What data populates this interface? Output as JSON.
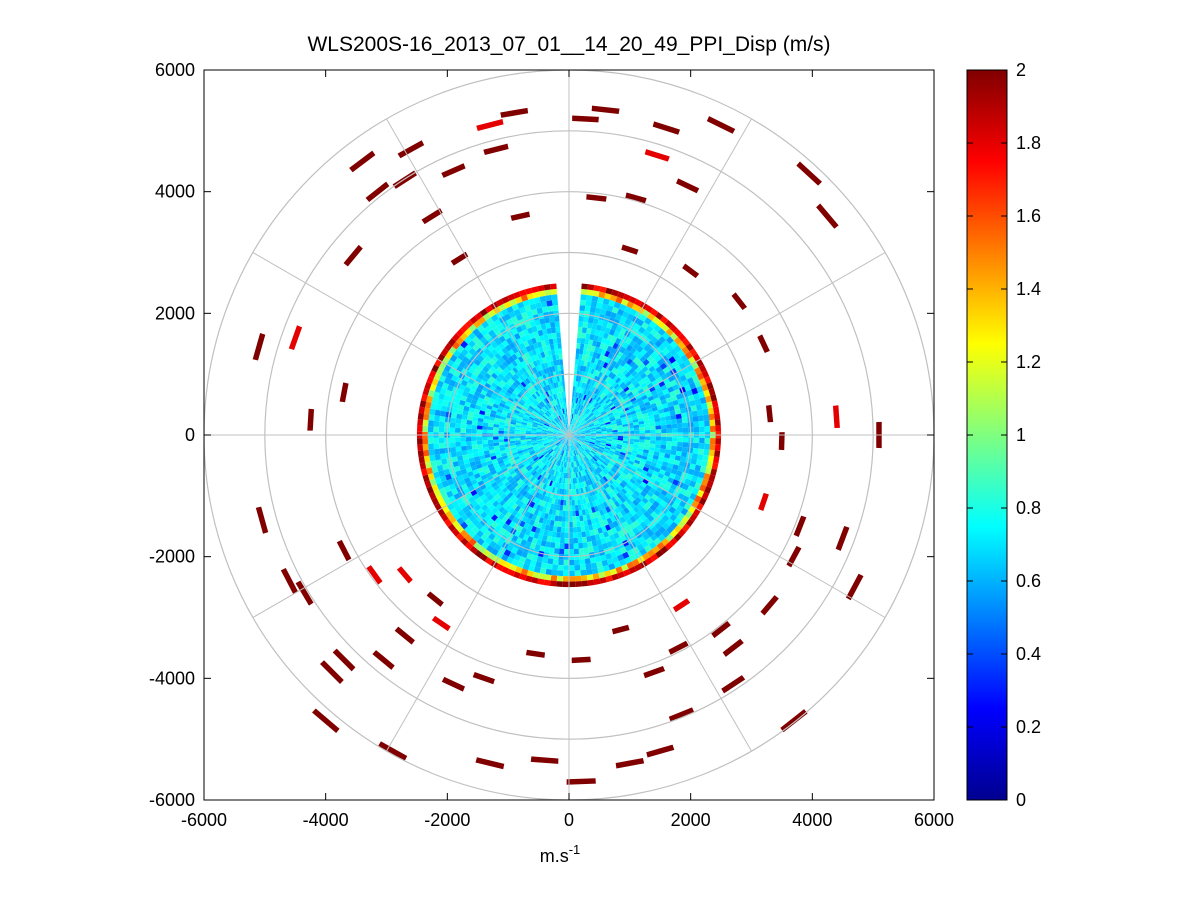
{
  "figure": {
    "title": "WLS200S-16_2013_07_01__14_20_49_PPI_Disp (m/s)",
    "xlabel": "m.s",
    "xlabel_sup": "-1"
  },
  "chart_data": {
    "type": "heatmap",
    "subtype": "polar-ppi",
    "title": "WLS200S-16_2013_07_01__14_20_49_PPI_Disp (m/s)",
    "xlabel": "m.s-1",
    "ylabel": "",
    "xlim": [
      -6000,
      6000
    ],
    "ylim": [
      -6000,
      6000
    ],
    "xticks": [
      -6000,
      -4000,
      -2000,
      0,
      2000,
      4000,
      6000
    ],
    "yticks": [
      -6000,
      -4000,
      -2000,
      0,
      2000,
      4000,
      6000
    ],
    "grid": true,
    "polar_rings": [
      1000,
      2000,
      3000,
      4000,
      5000,
      6000
    ],
    "polar_spokes_deg": [
      0,
      30,
      60,
      90,
      120,
      150,
      180,
      210,
      240,
      270,
      300,
      330
    ],
    "colormap": "jet",
    "clim": [
      0,
      2
    ],
    "colorbar_ticks": [
      0,
      0.2,
      0.4,
      0.6,
      0.8,
      1,
      1.2,
      1.4,
      1.6,
      1.8,
      2
    ],
    "dense_region": {
      "range_max_m": 2500,
      "typical_value": 0.7,
      "edge_values": [
        1.0,
        1.2,
        1.8,
        2.0
      ],
      "gap_azimuth_deg": [
        -4,
        4
      ]
    },
    "scatter_cells": [
      {
        "x": 270,
        "y": 5200,
        "v": 2.0
      },
      {
        "x": 600,
        "y": 5350,
        "v": 2.0
      },
      {
        "x": -900,
        "y": 5300,
        "v": 2.0
      },
      {
        "x": -1300,
        "y": 5100,
        "v": 1.8
      },
      {
        "x": 1600,
        "y": 5050,
        "v": 2.0
      },
      {
        "x": 2500,
        "y": 5100,
        "v": 2.0
      },
      {
        "x": -2600,
        "y": 4700,
        "v": 2.0
      },
      {
        "x": -2700,
        "y": 4200,
        "v": 2.0
      },
      {
        "x": 1450,
        "y": 4600,
        "v": 1.8
      },
      {
        "x": 3950,
        "y": 4300,
        "v": 2.0
      },
      {
        "x": -1900,
        "y": 4350,
        "v": 2.0
      },
      {
        "x": -1200,
        "y": 4700,
        "v": 2.0
      },
      {
        "x": -3150,
        "y": 4000,
        "v": 2.0
      },
      {
        "x": -3400,
        "y": 4500,
        "v": 2.0
      },
      {
        "x": 1950,
        "y": 4100,
        "v": 2.0
      },
      {
        "x": 450,
        "y": 3900,
        "v": 2.0
      },
      {
        "x": 1100,
        "y": 3900,
        "v": 2.0
      },
      {
        "x": 4250,
        "y": 3600,
        "v": 2.0
      },
      {
        "x": -2250,
        "y": 3600,
        "v": 2.0
      },
      {
        "x": -800,
        "y": 3600,
        "v": 2.0
      },
      {
        "x": 1000,
        "y": 3050,
        "v": 2.0
      },
      {
        "x": -3550,
        "y": 2950,
        "v": 2.0
      },
      {
        "x": -1800,
        "y": 2900,
        "v": 2.0
      },
      {
        "x": 2000,
        "y": 2700,
        "v": 2.0
      },
      {
        "x": -5100,
        "y": 1450,
        "v": 2.0
      },
      {
        "x": -4500,
        "y": 1600,
        "v": 1.8
      },
      {
        "x": 2800,
        "y": 2200,
        "v": 2.0
      },
      {
        "x": 3200,
        "y": 1500,
        "v": 2.0
      },
      {
        "x": -3700,
        "y": 700,
        "v": 2.0
      },
      {
        "x": -4250,
        "y": 250,
        "v": 2.0
      },
      {
        "x": 4400,
        "y": 300,
        "v": 1.8
      },
      {
        "x": 5100,
        "y": 0,
        "v": 2.0
      },
      {
        "x": 3300,
        "y": 350,
        "v": 2.0
      },
      {
        "x": 3500,
        "y": -100,
        "v": 2.0
      },
      {
        "x": 3200,
        "y": -1100,
        "v": 1.8
      },
      {
        "x": 3800,
        "y": -1500,
        "v": 2.0
      },
      {
        "x": 4500,
        "y": -1700,
        "v": 2.0
      },
      {
        "x": 3700,
        "y": -2000,
        "v": 2.0
      },
      {
        "x": 4700,
        "y": -2500,
        "v": 2.0
      },
      {
        "x": -5050,
        "y": -1400,
        "v": 2.0
      },
      {
        "x": -3700,
        "y": -1900,
        "v": 2.0
      },
      {
        "x": -4600,
        "y": -2400,
        "v": 2.0
      },
      {
        "x": -4350,
        "y": -2600,
        "v": 2.0
      },
      {
        "x": -3200,
        "y": -2300,
        "v": 1.8
      },
      {
        "x": -2700,
        "y": -2300,
        "v": 1.8
      },
      {
        "x": -2200,
        "y": -2700,
        "v": 2.0
      },
      {
        "x": -2100,
        "y": -3100,
        "v": 1.8
      },
      {
        "x": -2700,
        "y": -3300,
        "v": 2.0
      },
      {
        "x": -3050,
        "y": -3700,
        "v": 2.0
      },
      {
        "x": -3900,
        "y": -3900,
        "v": 2.0
      },
      {
        "x": -3700,
        "y": -3700,
        "v": 2.0
      },
      {
        "x": -4000,
        "y": -4700,
        "v": 2.0
      },
      {
        "x": -2900,
        "y": -5200,
        "v": 2.0
      },
      {
        "x": -1300,
        "y": -5400,
        "v": 2.0
      },
      {
        "x": -1400,
        "y": -4000,
        "v": 2.0
      },
      {
        "x": -1900,
        "y": -4100,
        "v": 2.0
      },
      {
        "x": -550,
        "y": -3600,
        "v": 2.0
      },
      {
        "x": 200,
        "y": -3700,
        "v": 2.0
      },
      {
        "x": 850,
        "y": -3200,
        "v": 2.0
      },
      {
        "x": 1850,
        "y": -2800,
        "v": 1.8
      },
      {
        "x": 2500,
        "y": -3200,
        "v": 2.0
      },
      {
        "x": 3300,
        "y": -2800,
        "v": 2.0
      },
      {
        "x": 2700,
        "y": -3500,
        "v": 2.0
      },
      {
        "x": 1800,
        "y": -3500,
        "v": 2.0
      },
      {
        "x": 1400,
        "y": -3900,
        "v": 2.0
      },
      {
        "x": 2700,
        "y": -4100,
        "v": 2.0
      },
      {
        "x": 1850,
        "y": -4600,
        "v": 2.0
      },
      {
        "x": 3700,
        "y": -4700,
        "v": 2.0
      },
      {
        "x": 1500,
        "y": -5200,
        "v": 2.0
      },
      {
        "x": 1000,
        "y": -5400,
        "v": 2.0
      },
      {
        "x": -400,
        "y": -5350,
        "v": 2.0
      },
      {
        "x": 200,
        "y": -5700,
        "v": 2.0
      }
    ]
  }
}
